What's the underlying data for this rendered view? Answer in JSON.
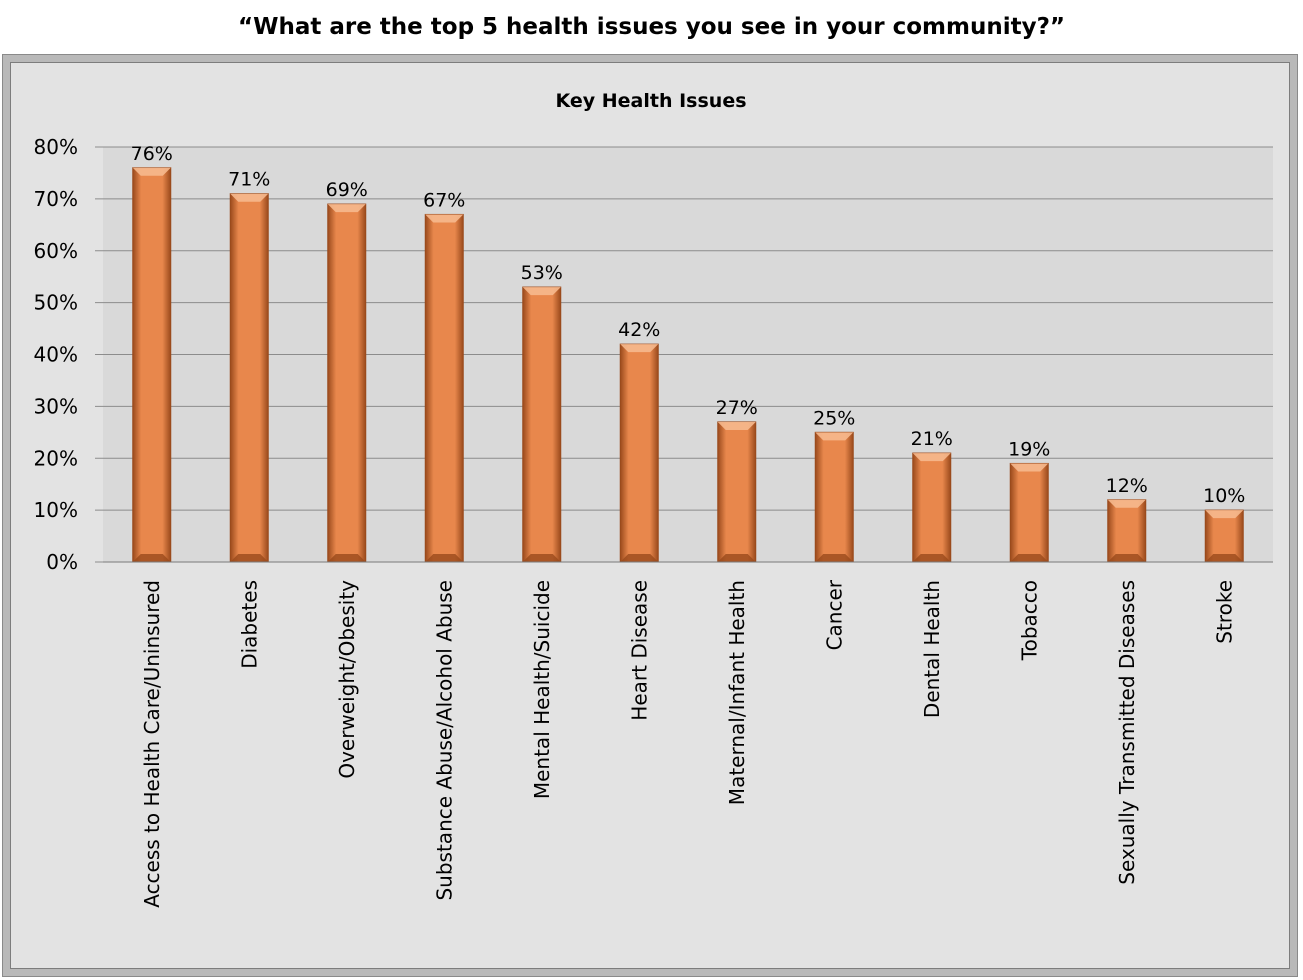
{
  "page": {
    "question": "“What are the top 5 health issues you see in your community?”"
  },
  "colors": {
    "bar": "#e8874c",
    "bar_dark": "#9a4a1c",
    "bar_light": "#f6b98e",
    "plot_bg": "#d9d9d9",
    "chart_bg": "#e3e3e3",
    "gridline": "#8c8c8c"
  },
  "chart_data": {
    "type": "bar",
    "title": "Key Health Issues",
    "xlabel": "",
    "ylabel": "",
    "ylim": [
      0,
      0.8
    ],
    "y_ticks": [
      0,
      0.1,
      0.2,
      0.3,
      0.4,
      0.5,
      0.6,
      0.7,
      0.8
    ],
    "y_tick_labels": [
      "0%",
      "10%",
      "20%",
      "30%",
      "40%",
      "50%",
      "60%",
      "70%",
      "80%"
    ],
    "grid": true,
    "categories": [
      "Access to Health Care/Uninsured",
      "Diabetes",
      "Overweight/Obesity",
      "Substance Abuse/Alcohol Abuse",
      "Mental Health/Suicide",
      "Heart Disease",
      "Maternal/Infant Health",
      "Cancer",
      "Dental Health",
      "Tobacco",
      "Sexually Transmitted Diseases",
      "Stroke"
    ],
    "values": [
      0.76,
      0.71,
      0.69,
      0.67,
      0.53,
      0.42,
      0.27,
      0.25,
      0.21,
      0.19,
      0.12,
      0.1
    ],
    "value_labels": [
      "76%",
      "71%",
      "69%",
      "67%",
      "53%",
      "42%",
      "27%",
      "25%",
      "21%",
      "19%",
      "12%",
      "10%"
    ]
  }
}
